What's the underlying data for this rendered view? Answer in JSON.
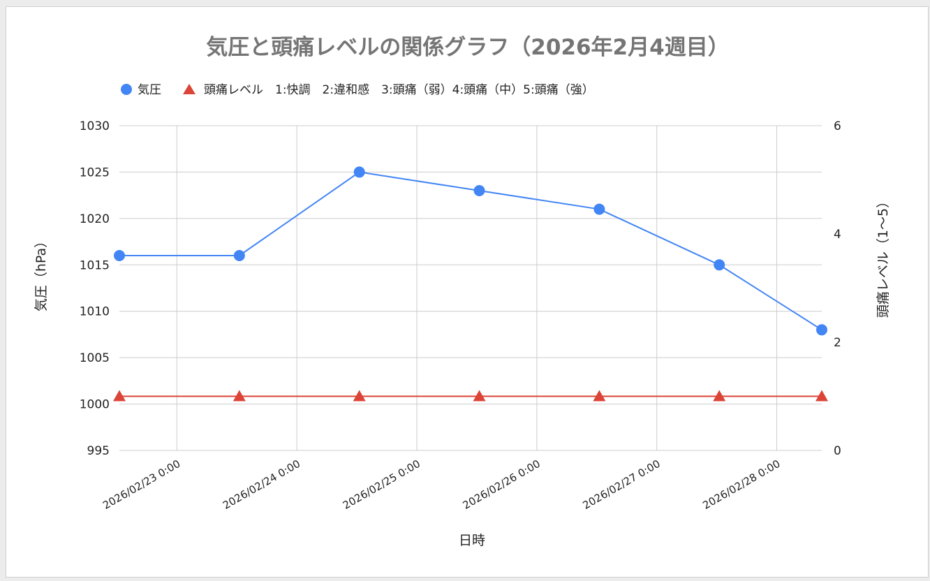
{
  "chart_data": {
    "type": "line",
    "title": "気圧と頭痛レベルの関係グラフ（2026年2月4週目）",
    "xlabel": "日時",
    "ylabel_left": "気圧（hPa）",
    "ylabel_right": "頭痛レベル（1〜5）",
    "x_ticks": [
      "2026/02/23 0:00",
      "2026/02/24 0:00",
      "2026/02/25 0:00",
      "2026/02/26 0:00",
      "2026/02/27 0:00",
      "2026/02/28 0:00"
    ],
    "x_range": [
      "2026/02/22 12:30",
      "2026/02/28 9:00"
    ],
    "y_left_ticks": [
      995,
      1000,
      1005,
      1010,
      1015,
      1020,
      1025,
      1030
    ],
    "y_left_range": [
      995,
      1030
    ],
    "y_right_ticks": [
      0,
      2,
      4,
      6
    ],
    "y_right_range": [
      0,
      6
    ],
    "grid": true,
    "legend_position": "top-left",
    "series": [
      {
        "name": "気圧",
        "axis": "left",
        "marker": "circle",
        "color": "#4285f4",
        "x": [
          "2026/02/22 12:30",
          "2026/02/23 12:30",
          "2026/02/24 12:30",
          "2026/02/25 12:30",
          "2026/02/26 12:30",
          "2026/02/27 12:30",
          "2026/02/28 9:00"
        ],
        "values": [
          1016,
          1016,
          1025,
          1023,
          1021,
          1015,
          1008
        ]
      },
      {
        "name": "頭痛レベル　1:快調　2:違和感　3:頭痛（弱）4:頭痛（中）5:頭痛（強）",
        "axis": "right",
        "marker": "triangle",
        "color": "#db4437",
        "x": [
          "2026/02/22 12:30",
          "2026/02/23 12:30",
          "2026/02/24 12:30",
          "2026/02/25 12:30",
          "2026/02/26 12:30",
          "2026/02/27 12:30",
          "2026/02/28 9:00"
        ],
        "values": [
          1,
          1,
          1,
          1,
          1,
          1,
          1
        ]
      }
    ]
  }
}
